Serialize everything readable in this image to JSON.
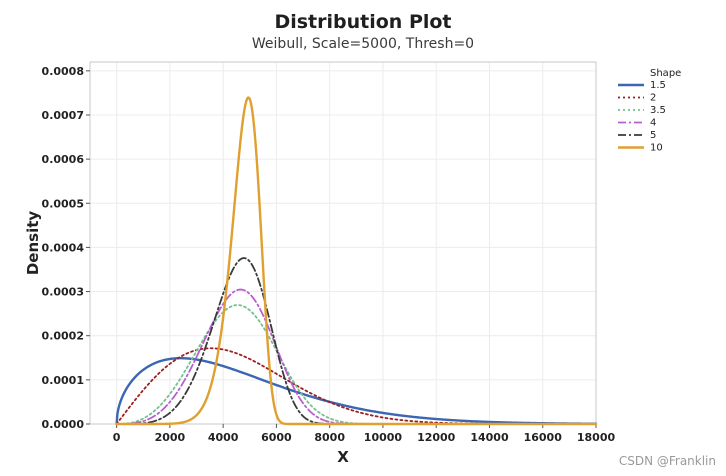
{
  "chart_data": {
    "type": "line",
    "title": "Distribution Plot",
    "subtitle": "Weibull, Scale=5000, Thresh=0",
    "xlabel": "X",
    "ylabel": "Density",
    "xlim": [
      -1000,
      18000
    ],
    "ylim": [
      0,
      0.00082
    ],
    "x_ticks": [
      0,
      2000,
      4000,
      6000,
      8000,
      10000,
      12000,
      14000,
      16000,
      18000
    ],
    "x_tick_labels": [
      "0",
      "2000",
      "4000",
      "6000",
      "8000",
      "10000",
      "12000",
      "14000",
      "16000",
      "18000"
    ],
    "y_ticks": [
      0,
      0.0001,
      0.0002,
      0.0003,
      0.0004,
      0.0005,
      0.0006,
      0.0007,
      0.0008
    ],
    "y_tick_labels": [
      "0.0000",
      "0.0001",
      "0.0002",
      "0.0003",
      "0.0004",
      "0.0005",
      "0.0006",
      "0.0007",
      "0.0008"
    ],
    "grid": true,
    "distribution": "weibull",
    "scale": 5000,
    "threshold": 0,
    "legend": {
      "title": "Shape",
      "position": "top-right"
    },
    "series": [
      {
        "name": "1.5",
        "shape": 1.5,
        "color": "#3a66b3",
        "style": "solid"
      },
      {
        "name": "2",
        "shape": 2,
        "color": "#9e1f1f",
        "style": "dotted"
      },
      {
        "name": "3.5",
        "shape": 3.5,
        "color": "#74c18f",
        "style": "dotted"
      },
      {
        "name": "4",
        "shape": 4,
        "color": "#b85fcf",
        "style": "dashdot"
      },
      {
        "name": "5",
        "shape": 5,
        "color": "#3a3a3a",
        "style": "dashdot"
      },
      {
        "name": "10",
        "shape": 10,
        "color": "#e0a030",
        "style": "solid"
      }
    ]
  },
  "watermark": "CSDN @Franklin"
}
